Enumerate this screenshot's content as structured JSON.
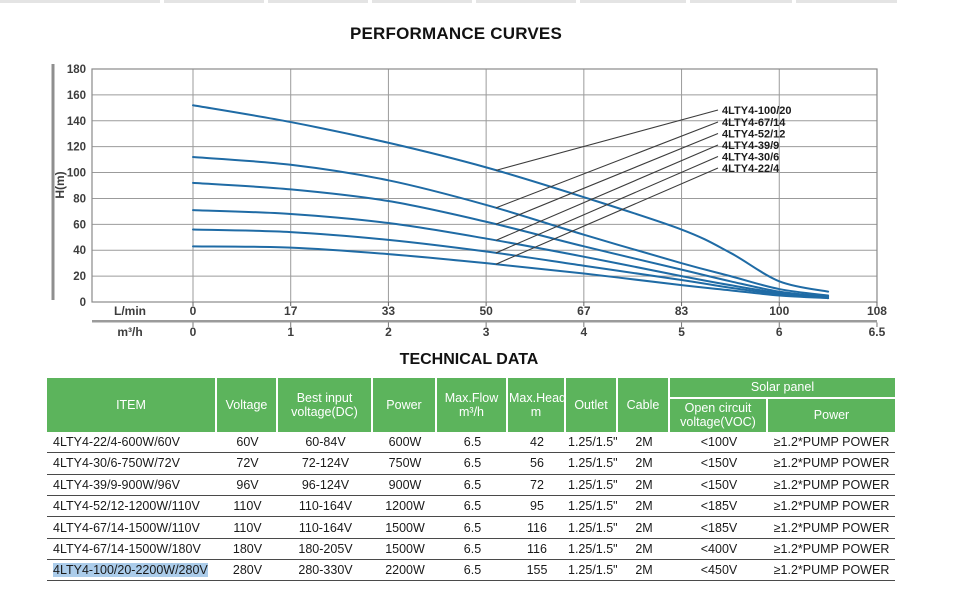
{
  "chart_data": {
    "type": "line",
    "title": "PERFORMANCE CURVES",
    "ylabel": "H(m)",
    "ylim": [
      0,
      180
    ],
    "y_tick_step": 20,
    "grid": true,
    "legend_position": "inline-right-leader-labels",
    "x_axis_rows": [
      {
        "unit": "L/min",
        "tick_labels": [
          "0",
          "17",
          "33",
          "50",
          "67",
          "83",
          "100",
          "108"
        ]
      },
      {
        "unit": "m³/h",
        "tick_labels": [
          "0",
          "1",
          "2",
          "3",
          "4",
          "5",
          "6",
          "6.5"
        ]
      }
    ],
    "x_unit_primary": "m³/h",
    "x_samples": [
      0,
      1,
      2,
      3,
      4,
      5,
      5.5,
      6,
      6.25
    ],
    "series": [
      {
        "name": "4LTY4-100/20",
        "head_m": [
          152,
          139,
          123,
          104,
          81,
          56,
          38,
          16,
          8
        ]
      },
      {
        "name": "4LTY4-67/14",
        "head_m": [
          112,
          106,
          94,
          75,
          52,
          30,
          20,
          10,
          5
        ]
      },
      {
        "name": "4LTY4-52/12",
        "head_m": [
          92,
          87,
          78,
          62,
          43,
          25,
          16,
          8,
          4
        ]
      },
      {
        "name": "4LTY4-39/9",
        "head_m": [
          71,
          68,
          61,
          49,
          35,
          20,
          13,
          7,
          4
        ]
      },
      {
        "name": "4LTY4-30/6",
        "head_m": [
          56,
          54,
          48,
          39,
          28,
          17,
          11,
          6,
          3
        ]
      },
      {
        "name": "4LTY4-22/4",
        "head_m": [
          43,
          42,
          37,
          30,
          22,
          13,
          9,
          5,
          3
        ]
      }
    ],
    "colors": {
      "curve": "#1f6ba5",
      "grid": "#9b9b9b",
      "axis_bar": "#8f8f8f",
      "leader_line": "#3c3c3c",
      "text": "#3d3d3d"
    }
  },
  "table": {
    "title": "TECHNICAL DATA",
    "header": {
      "item": "ITEM",
      "voltage": "Voltage",
      "best_input": "Best input voltage(DC)",
      "power": "Power",
      "max_flow": "Max.Flow m³/h",
      "max_head": "Max.Head m",
      "outlet": "Outlet",
      "cable": "Cable",
      "solar_panel": "Solar panel",
      "open_circuit": "Open circuit voltage(VOC)",
      "solar_power": "Power"
    },
    "rows": [
      [
        "4LTY4-22/4-600W/60V",
        "60V",
        "60-84V",
        "600W",
        "6.5",
        "42",
        "1.25/1.5\"",
        "2M",
        "<100V",
        "≥1.2*PUMP POWER"
      ],
      [
        "4LTY4-30/6-750W/72V",
        "72V",
        "72-124V",
        "750W",
        "6.5",
        "56",
        "1.25/1.5\"",
        "2M",
        "<150V",
        "≥1.2*PUMP POWER"
      ],
      [
        "4LTY4-39/9-900W/96V",
        "96V",
        "96-124V",
        "900W",
        "6.5",
        "72",
        "1.25/1.5\"",
        "2M",
        "<150V",
        "≥1.2*PUMP POWER"
      ],
      [
        "4LTY4-52/12-1200W/110V",
        "110V",
        "110-164V",
        "1200W",
        "6.5",
        "95",
        "1.25/1.5\"",
        "2M",
        "<185V",
        "≥1.2*PUMP POWER"
      ],
      [
        "4LTY4-67/14-1500W/110V",
        "110V",
        "110-164V",
        "1500W",
        "6.5",
        "116",
        "1.25/1.5\"",
        "2M",
        "<185V",
        "≥1.2*PUMP POWER"
      ],
      [
        "4LTY4-67/14-1500W/180V",
        "180V",
        "180-205V",
        "1500W",
        "6.5",
        "116",
        "1.25/1.5\"",
        "2M",
        "<400V",
        "≥1.2*PUMP POWER"
      ],
      [
        "4LTY4-100/20-2200W/280V",
        "280V",
        "280-330V",
        "2200W",
        "6.5",
        "155",
        "1.25/1.5\"",
        "2M",
        "<450V",
        "≥1.2*PUMP POWER"
      ]
    ],
    "selection": {
      "row": 6,
      "col": 0,
      "highlight_color": "#abccea"
    }
  }
}
